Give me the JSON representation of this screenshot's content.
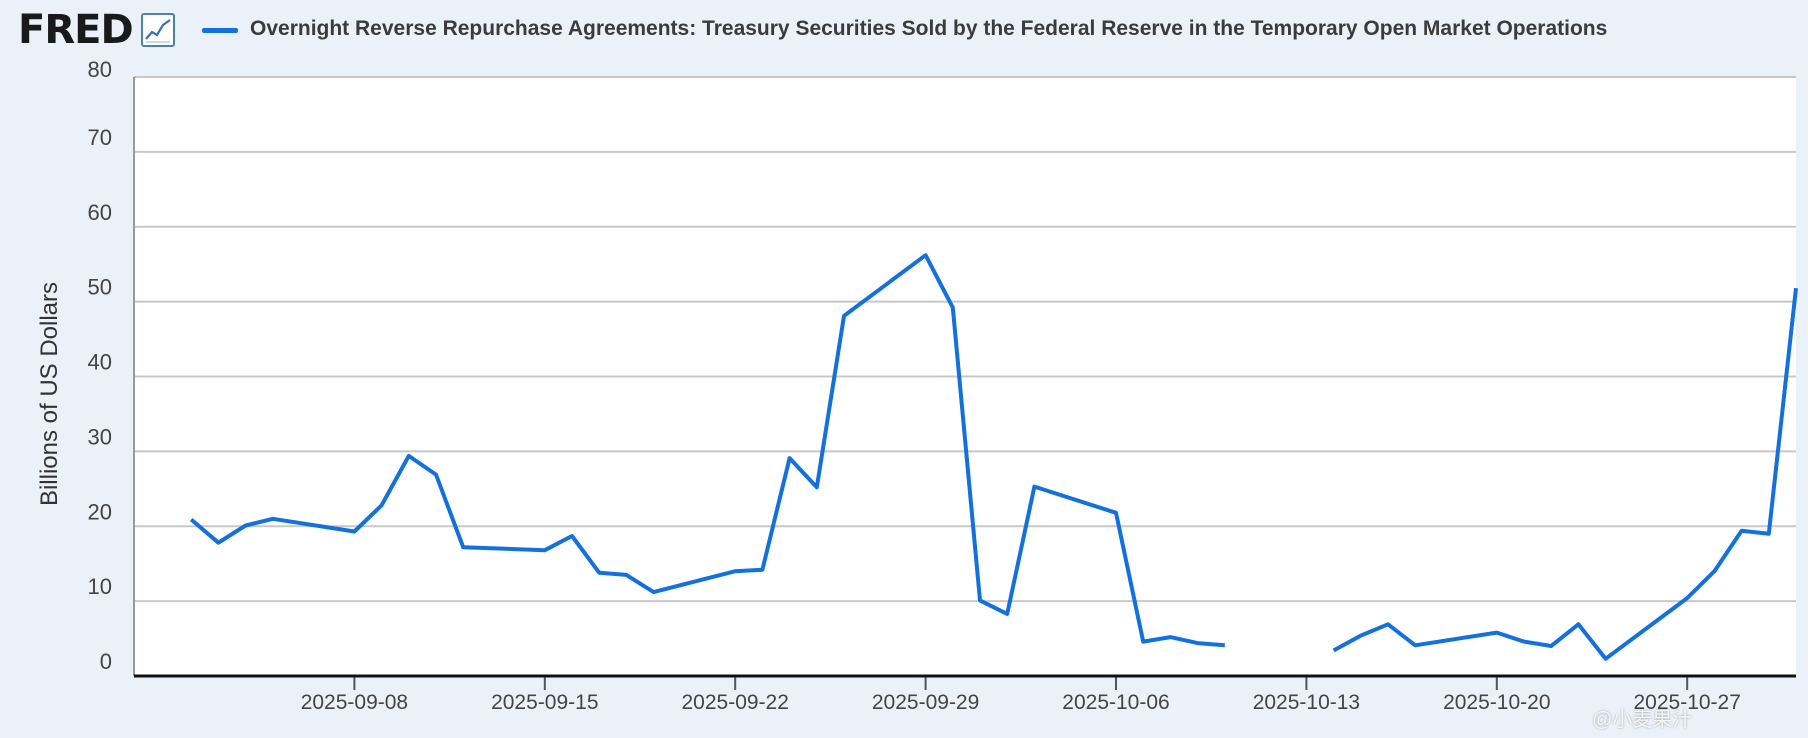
{
  "header": {
    "logo_text": "FRED",
    "series_title": "Overnight Reverse Repurchase Agreements: Treasury Securities Sold by the Federal Reserve in the Temporary Open Market Operations"
  },
  "watermark": "@小麦果汁",
  "colors": {
    "series": "#1370df",
    "grid": "#c8c8c8",
    "plot_bg": "#ffffff",
    "page_bg": "#eaf1f9"
  },
  "chart_data": {
    "type": "line",
    "ylabel": "Billions of US Dollars",
    "ylim": [
      0,
      80
    ],
    "yticks": [
      0,
      10,
      20,
      30,
      40,
      50,
      60,
      70,
      80
    ],
    "xlim": [
      "2025-09-01",
      "2025-10-31"
    ],
    "xticks": [
      "2025-09-08",
      "2025-09-15",
      "2025-09-22",
      "2025-09-29",
      "2025-10-06",
      "2025-10-13",
      "2025-10-20",
      "2025-10-27"
    ],
    "grid": true,
    "series": [
      {
        "name": "Overnight Reverse Repurchase Agreements: Treasury Securities Sold by the Federal Reserve in the Temporary Open Market Operations",
        "points": [
          {
            "x": "2025-09-02",
            "y": 20.9
          },
          {
            "x": "2025-09-03",
            "y": 17.8
          },
          {
            "x": "2025-09-04",
            "y": 20.1
          },
          {
            "x": "2025-09-05",
            "y": 21.0
          },
          {
            "x": "2025-09-08",
            "y": 19.3
          },
          {
            "x": "2025-09-09",
            "y": 22.8
          },
          {
            "x": "2025-09-10",
            "y": 29.4
          },
          {
            "x": "2025-09-11",
            "y": 26.9
          },
          {
            "x": "2025-09-12",
            "y": 17.2
          },
          {
            "x": "2025-09-15",
            "y": 16.8
          },
          {
            "x": "2025-09-16",
            "y": 18.7
          },
          {
            "x": "2025-09-17",
            "y": 13.8
          },
          {
            "x": "2025-09-18",
            "y": 13.5
          },
          {
            "x": "2025-09-19",
            "y": 11.2
          },
          {
            "x": "2025-09-22",
            "y": 14.0
          },
          {
            "x": "2025-09-23",
            "y": 14.2
          },
          {
            "x": "2025-09-24",
            "y": 29.1
          },
          {
            "x": "2025-09-25",
            "y": 25.2
          },
          {
            "x": "2025-09-26",
            "y": 48.1
          },
          {
            "x": "2025-09-29",
            "y": 56.2
          },
          {
            "x": "2025-09-30",
            "y": 49.2
          },
          {
            "x": "2025-10-01",
            "y": 10.1
          },
          {
            "x": "2025-10-02",
            "y": 8.3
          },
          {
            "x": "2025-10-03",
            "y": 25.3
          },
          {
            "x": "2025-10-06",
            "y": 21.8
          },
          {
            "x": "2025-10-07",
            "y": 4.6
          },
          {
            "x": "2025-10-08",
            "y": 5.2
          },
          {
            "x": "2025-10-09",
            "y": 4.4
          },
          {
            "x": "2025-10-10",
            "y": 4.1
          },
          {
            "x": "2025-10-13",
            "y": null
          },
          {
            "x": "2025-10-14",
            "y": 3.4
          },
          {
            "x": "2025-10-15",
            "y": 5.4
          },
          {
            "x": "2025-10-16",
            "y": 6.9
          },
          {
            "x": "2025-10-17",
            "y": 4.1
          },
          {
            "x": "2025-10-20",
            "y": 5.8
          },
          {
            "x": "2025-10-21",
            "y": 4.6
          },
          {
            "x": "2025-10-22",
            "y": 4.0
          },
          {
            "x": "2025-10-23",
            "y": 6.9
          },
          {
            "x": "2025-10-24",
            "y": 2.3
          },
          {
            "x": "2025-10-27",
            "y": 10.4
          },
          {
            "x": "2025-10-28",
            "y": 14.0
          },
          {
            "x": "2025-10-29",
            "y": 19.4
          },
          {
            "x": "2025-10-30",
            "y": 19.0
          },
          {
            "x": "2025-10-31",
            "y": 51.8
          }
        ]
      }
    ]
  }
}
